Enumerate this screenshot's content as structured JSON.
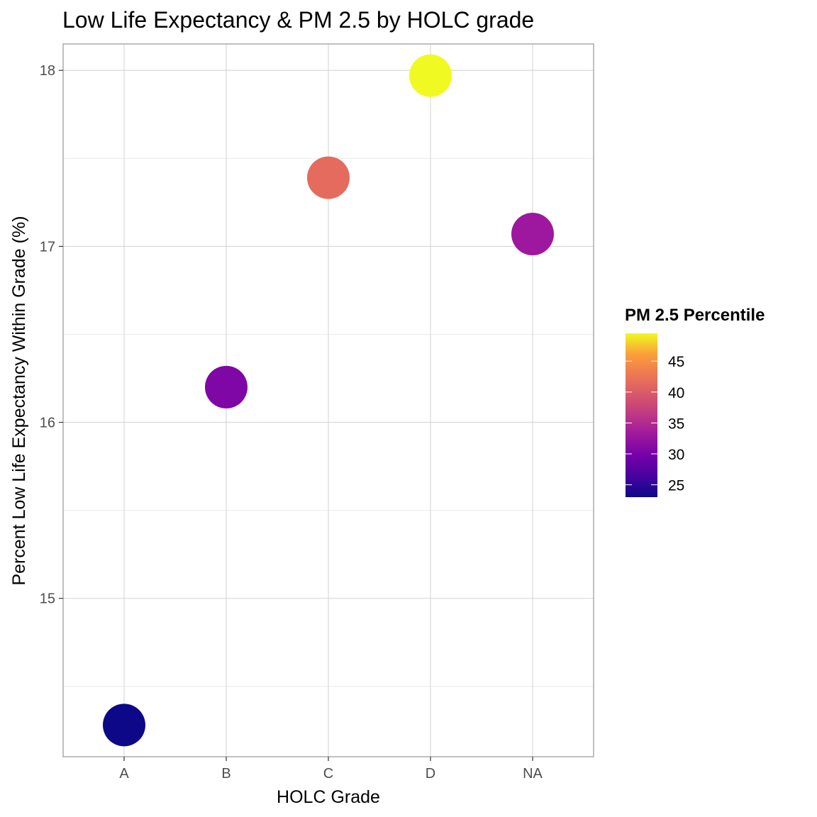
{
  "chart_data": {
    "type": "scatter",
    "title": "Low Life Expectancy & PM 2.5 by HOLC grade",
    "xlabel": "HOLC Grade",
    "ylabel": "Percent Low Life Expectancy Within Grade (%)",
    "categories": [
      "A",
      "B",
      "C",
      "D",
      "NA"
    ],
    "points": [
      {
        "x": "A",
        "y": 14.28,
        "pm25": 23.0
      },
      {
        "x": "B",
        "y": 16.2,
        "pm25": 30.5
      },
      {
        "x": "C",
        "y": 17.39,
        "pm25": 41.5
      },
      {
        "x": "D",
        "y": 17.97,
        "pm25": 49.5
      },
      {
        "x": "NA",
        "y": 17.07,
        "pm25": 33.0
      }
    ],
    "ylim": [
      14.1,
      18.15
    ],
    "yticks": [
      15,
      16,
      17,
      18
    ],
    "ytick_labels": [
      "15",
      "16",
      "17",
      "18"
    ],
    "grid": true,
    "legend": {
      "title": "PM 2.5 Percentile",
      "position": "right",
      "range": [
        23.0,
        49.5
      ],
      "ticks": [
        25,
        30,
        35,
        40,
        45
      ],
      "tick_labels": [
        "25",
        "30",
        "35",
        "40",
        "45"
      ],
      "colormap": "plasma"
    }
  }
}
